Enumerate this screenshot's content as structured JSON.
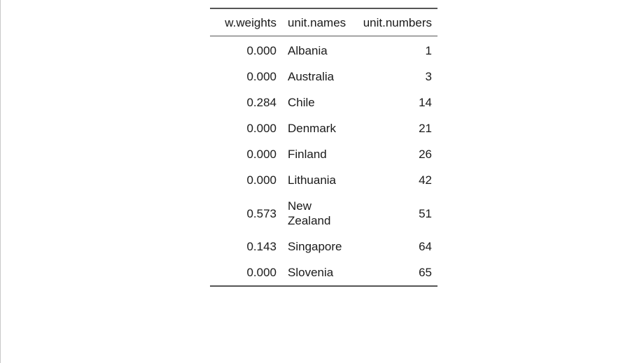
{
  "table": {
    "headers": {
      "weight": "w.weights",
      "name": "unit.names",
      "number": "unit.numbers"
    },
    "rows": [
      {
        "weight": "0.000",
        "name": "Albania",
        "number": "1"
      },
      {
        "weight": "0.000",
        "name": "Australia",
        "number": "3"
      },
      {
        "weight": "0.284",
        "name": "Chile",
        "number": "14"
      },
      {
        "weight": "0.000",
        "name": "Denmark",
        "number": "21"
      },
      {
        "weight": "0.000",
        "name": "Finland",
        "number": "26"
      },
      {
        "weight": "0.000",
        "name": "Lithuania",
        "number": "42"
      },
      {
        "weight": "0.573",
        "name": "New Zealand",
        "number": "51"
      },
      {
        "weight": "0.143",
        "name": "Singapore",
        "number": "64"
      },
      {
        "weight": "0.000",
        "name": "Slovenia",
        "number": "65"
      }
    ]
  }
}
